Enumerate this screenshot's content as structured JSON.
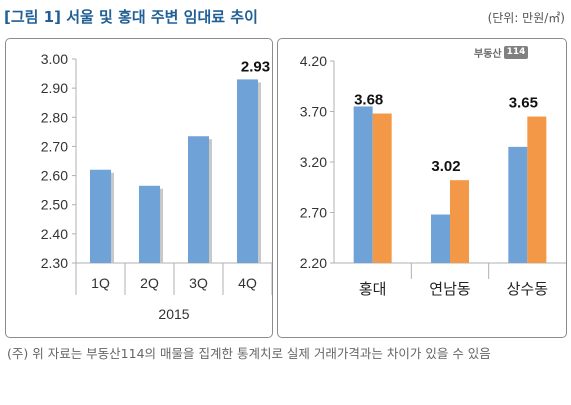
{
  "title": "[그림 1] 서울 및 홍대 주변 임대료 추이",
  "unit_label": "(단위: 만원/㎡)",
  "logo": {
    "name": "부동산",
    "tag": "114"
  },
  "footnote": "(주) 위 자료는 부동산114의 매물을 집계한 통계치로 실제 거래가격과는 차이가 있을 수 있음",
  "colors": {
    "blue": "#6fa3d8",
    "orange": "#f39847",
    "title": "#1f5f95"
  },
  "chart_data": [
    {
      "type": "bar",
      "title": "",
      "xlabel": "2015",
      "ylabel": "",
      "categories": [
        "1Q",
        "2Q",
        "3Q",
        "4Q"
      ],
      "values": [
        2.62,
        2.565,
        2.735,
        2.93
      ],
      "ylim": [
        2.3,
        3.0
      ],
      "yticks": [
        "2.30",
        "2.40",
        "2.50",
        "2.60",
        "2.70",
        "2.80",
        "2.90",
        "3.00"
      ],
      "data_labels": [
        "",
        "",
        "",
        "2.93"
      ],
      "grid": false
    },
    {
      "type": "bar",
      "title": "",
      "xlabel": "",
      "ylabel": "",
      "categories": [
        "홍대",
        "연남동",
        "상수동"
      ],
      "series": [
        {
          "values": [
            3.75,
            2.68,
            3.35
          ]
        },
        {
          "values": [
            3.68,
            3.02,
            3.65
          ]
        }
      ],
      "ylim": [
        2.2,
        4.2
      ],
      "yticks": [
        "2.20",
        "2.70",
        "3.20",
        "3.70",
        "4.20"
      ],
      "data_labels": [
        "3.68",
        "3.02",
        "3.65"
      ],
      "grid": false
    }
  ]
}
